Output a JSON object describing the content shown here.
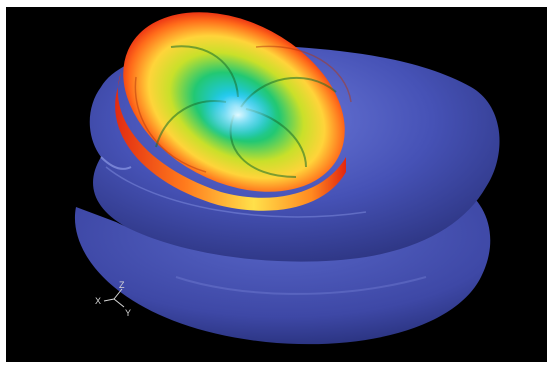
{
  "scene": {
    "background_color": "#000000",
    "housing_color": "#4752b8",
    "impeller_colormap": [
      "#1ec8f0",
      "#22c873",
      "#c9e02a",
      "#ffd43a",
      "#ff6a1a",
      "#e31a10"
    ]
  },
  "axis_triad": {
    "x_label": "X",
    "y_label": "Y",
    "z_label": "Z"
  }
}
